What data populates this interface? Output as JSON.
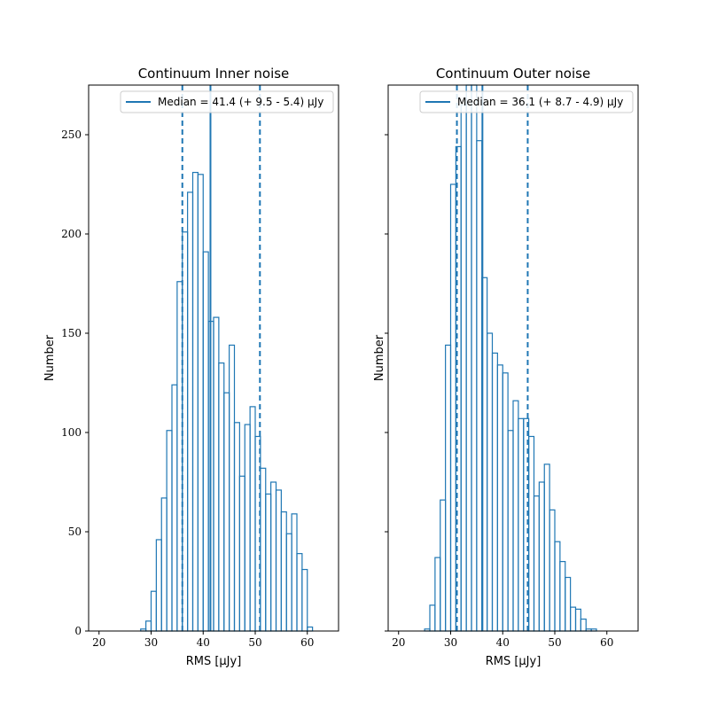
{
  "chart_data": [
    {
      "type": "step-histogram",
      "title": "Continuum Inner noise",
      "xlabel": "RMS [μJy]",
      "ylabel": "Number",
      "xlim": [
        18,
        66
      ],
      "ylim": [
        0,
        275
      ],
      "xticks": [
        20,
        30,
        40,
        50,
        60
      ],
      "yticks": [
        0,
        50,
        100,
        150,
        200,
        250
      ],
      "ytick_labels_shown": true,
      "color": "#1f77b4",
      "bin_edges": [
        28,
        29,
        30,
        31,
        32,
        33,
        34,
        35,
        36,
        37,
        38,
        39,
        40,
        41,
        42,
        43,
        44,
        45,
        46,
        47,
        48,
        49,
        50,
        51,
        52,
        53,
        54,
        55,
        56,
        57,
        58,
        59,
        60,
        61,
        62
      ],
      "counts": [
        1,
        5,
        20,
        46,
        67,
        101,
        124,
        176,
        201,
        221,
        231,
        230,
        191,
        156,
        158,
        135,
        120,
        144,
        105,
        78,
        104,
        113,
        98,
        82,
        69,
        75,
        71,
        60,
        49,
        59,
        39,
        31,
        2,
        0
      ],
      "median": 41.4,
      "lower_line": 36.0,
      "upper_line": 50.9,
      "legend": {
        "label": "Median = 41.4 (+ 9.5 - 5.4) μJy",
        "placement": "upper right"
      }
    },
    {
      "type": "step-histogram",
      "title": "Continuum Outer noise",
      "xlabel": "RMS [μJy]",
      "ylabel": "Number",
      "xlim": [
        18,
        66
      ],
      "ylim": [
        0,
        275
      ],
      "xticks": [
        20,
        30,
        40,
        50,
        60
      ],
      "yticks": [
        0,
        50,
        100,
        150,
        200,
        250
      ],
      "ytick_labels_shown": false,
      "color": "#1f77b4",
      "bin_edges": [
        25,
        26,
        27,
        28,
        29,
        30,
        31,
        32,
        33,
        34,
        35,
        36,
        37,
        38,
        39,
        40,
        41,
        42,
        43,
        44,
        45,
        46,
        47,
        48,
        49,
        50,
        51,
        52,
        53,
        54,
        55,
        56,
        57,
        58
      ],
      "counts": [
        1,
        13,
        37,
        66,
        144,
        225,
        244,
        265,
        275,
        275,
        247,
        178,
        150,
        140,
        134,
        130,
        101,
        116,
        107,
        107,
        98,
        68,
        75,
        84,
        61,
        45,
        35,
        27,
        12,
        11,
        6,
        1,
        1
      ],
      "median": 36.1,
      "lower_line": 31.2,
      "upper_line": 44.8,
      "legend": {
        "label": "Median = 36.1 (+ 8.7 - 4.9) μJy",
        "placement": "upper right"
      }
    }
  ]
}
